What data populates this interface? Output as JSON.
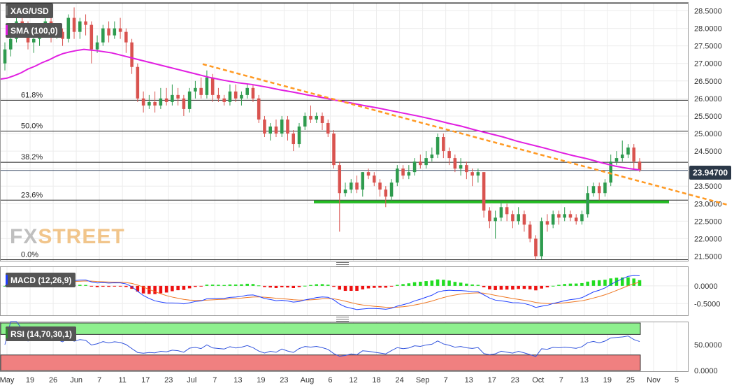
{
  "symbol": "XAG/USD",
  "current_price": "23.94700",
  "watermark": {
    "fx": "FX",
    "rest": "STREET"
  },
  "indicators": {
    "sma": {
      "label": "SMA (100,0)",
      "color": "#e11fe1"
    },
    "macd": {
      "label": "MACD (12,26,9)",
      "color": "#1f3fff"
    },
    "rsi": {
      "label": "RSI (14,70,30,1)",
      "color": "#2e8b2e"
    }
  },
  "colors": {
    "bull": "#2e9b4e",
    "bear": "#d9534f",
    "trendline": "#ff9922",
    "support": "#22bb22",
    "sma": "#e11fe1",
    "macd_line": "#1f3fff",
    "signal_line": "#ee7722",
    "hist_pos": "#22dd22",
    "hist_neg": "#ee1111",
    "rsi_line": "#3355dd",
    "rsi_overbought": "#8ef08e",
    "rsi_oversold": "#f08080"
  },
  "chart_data": [
    {
      "type": "candlestick",
      "title": "XAG/USD",
      "y_ticks": [
        "28.5000",
        "28.0000",
        "27.5000",
        "27.0000",
        "26.5000",
        "26.0000",
        "25.5000",
        "25.0000",
        "24.5000",
        "24.0000",
        "23.5000",
        "23.0000",
        "22.5000",
        "22.0000",
        "21.5000"
      ],
      "ylim": [
        21.35,
        28.75
      ],
      "x_ticks": [
        "May",
        "19",
        "26",
        "Jun",
        "7",
        "11",
        "17",
        "23",
        "Jul",
        "7",
        "13",
        "19",
        "23",
        "Aug",
        "6",
        "12",
        "18",
        "24",
        "Sep",
        "7",
        "13",
        "17",
        "23",
        "Oct",
        "7",
        "13",
        "19",
        "25",
        "Nov",
        "5"
      ],
      "fib_levels": [
        {
          "label": "61.8%",
          "value": 25.95
        },
        {
          "label": "50.0%",
          "value": 25.07
        },
        {
          "label": "38.2%",
          "value": 24.18
        },
        {
          "label": "23.6%",
          "value": 23.1
        },
        {
          "label": "0.0%",
          "value": 21.4
        }
      ],
      "top_line": 28.72,
      "current_price": 23.947,
      "support_line": 23.05,
      "candles": [
        [
          27.0,
          27.4,
          27.6,
          26.8
        ],
        [
          27.4,
          27.7,
          27.9,
          27.2
        ],
        [
          27.7,
          28.2,
          28.4,
          27.6
        ],
        [
          28.2,
          28.0,
          28.5,
          27.8
        ],
        [
          28.0,
          27.6,
          28.2,
          27.4
        ],
        [
          27.6,
          27.7,
          28.0,
          27.3
        ],
        [
          27.7,
          27.9,
          28.1,
          27.5
        ],
        [
          27.9,
          28.2,
          28.4,
          27.8
        ],
        [
          28.2,
          27.8,
          28.4,
          27.6
        ],
        [
          27.8,
          27.9,
          28.1,
          27.7
        ],
        [
          27.9,
          27.7,
          28.0,
          27.5
        ],
        [
          27.7,
          28.3,
          28.4,
          27.6
        ],
        [
          28.3,
          27.9,
          28.6,
          27.7
        ],
        [
          27.9,
          28.2,
          28.3,
          27.7
        ],
        [
          28.2,
          28.1,
          28.4,
          27.8
        ],
        [
          28.1,
          27.4,
          28.2,
          27.0
        ],
        [
          27.4,
          27.6,
          27.8,
          27.3
        ],
        [
          27.6,
          28.0,
          28.1,
          27.5
        ],
        [
          28.0,
          27.8,
          28.2,
          27.6
        ],
        [
          27.8,
          28.0,
          28.2,
          27.7
        ],
        [
          28.0,
          27.9,
          28.3,
          27.7
        ],
        [
          27.9,
          27.6,
          28.0,
          27.3
        ],
        [
          27.6,
          26.9,
          27.7,
          26.7
        ],
        [
          26.9,
          26.0,
          27.0,
          25.9
        ],
        [
          26.0,
          25.8,
          26.2,
          25.6
        ],
        [
          25.8,
          25.9,
          26.1,
          25.7
        ],
        [
          25.9,
          25.8,
          26.2,
          25.6
        ],
        [
          25.8,
          26.0,
          26.3,
          25.7
        ],
        [
          26.0,
          25.9,
          26.3,
          25.8
        ],
        [
          25.9,
          26.1,
          26.4,
          25.8
        ],
        [
          26.1,
          26.0,
          26.3,
          25.8
        ],
        [
          26.0,
          25.7,
          26.1,
          25.5
        ],
        [
          25.7,
          26.2,
          26.3,
          25.6
        ],
        [
          26.2,
          26.3,
          26.5,
          26.0
        ],
        [
          26.3,
          26.1,
          26.6,
          26.0
        ],
        [
          26.1,
          26.6,
          26.8,
          26.0
        ],
        [
          26.6,
          26.1,
          26.7,
          25.9
        ],
        [
          26.1,
          26.0,
          26.3,
          25.9
        ],
        [
          26.0,
          25.9,
          26.1,
          25.8
        ],
        [
          25.9,
          26.2,
          26.4,
          25.8
        ],
        [
          26.2,
          26.0,
          26.4,
          25.9
        ],
        [
          26.0,
          26.1,
          26.2,
          25.8
        ],
        [
          26.1,
          26.3,
          26.4,
          26.0
        ],
        [
          26.3,
          26.0,
          26.4,
          25.9
        ],
        [
          26.0,
          25.4,
          26.1,
          25.3
        ],
        [
          25.4,
          25.0,
          25.5,
          24.9
        ],
        [
          25.0,
          25.2,
          25.3,
          24.8
        ],
        [
          25.2,
          25.0,
          25.4,
          24.9
        ],
        [
          25.0,
          25.4,
          25.5,
          24.9
        ],
        [
          25.4,
          25.0,
          25.5,
          24.8
        ],
        [
          25.0,
          24.7,
          25.1,
          24.5
        ],
        [
          24.7,
          25.2,
          25.3,
          24.6
        ],
        [
          25.2,
          25.5,
          25.6,
          25.1
        ],
        [
          25.5,
          25.4,
          25.8,
          25.3
        ],
        [
          25.4,
          25.5,
          25.6,
          25.3
        ],
        [
          25.5,
          25.3,
          25.6,
          25.1
        ],
        [
          25.3,
          25.0,
          25.4,
          24.9
        ],
        [
          25.0,
          24.1,
          25.1,
          24.0
        ],
        [
          24.1,
          23.3,
          24.2,
          22.2
        ],
        [
          23.3,
          23.4,
          23.6,
          23.2
        ],
        [
          23.4,
          23.6,
          23.7,
          23.3
        ],
        [
          23.6,
          23.4,
          23.8,
          23.3
        ],
        [
          23.4,
          23.9,
          23.9,
          23.2
        ],
        [
          23.9,
          23.8,
          24.0,
          23.7
        ],
        [
          23.8,
          23.6,
          23.9,
          23.5
        ],
        [
          23.6,
          23.4,
          23.7,
          23.2
        ],
        [
          23.4,
          23.2,
          23.5,
          22.9
        ],
        [
          23.2,
          23.6,
          23.7,
          23.1
        ],
        [
          23.6,
          24.0,
          24.1,
          23.5
        ],
        [
          24.0,
          23.8,
          24.1,
          23.7
        ],
        [
          23.8,
          23.9,
          24.1,
          23.7
        ],
        [
          23.9,
          24.2,
          24.3,
          23.8
        ],
        [
          24.2,
          24.1,
          24.4,
          24.0
        ],
        [
          24.1,
          24.3,
          24.5,
          24.0
        ],
        [
          24.3,
          24.4,
          24.6,
          24.2
        ],
        [
          24.4,
          24.9,
          25.0,
          24.3
        ],
        [
          24.9,
          24.5,
          25.0,
          24.3
        ],
        [
          24.5,
          24.3,
          24.6,
          24.1
        ],
        [
          24.3,
          24.0,
          24.4,
          23.9
        ],
        [
          24.0,
          24.1,
          24.3,
          23.8
        ],
        [
          24.1,
          23.9,
          24.2,
          23.7
        ],
        [
          23.9,
          23.8,
          24.0,
          23.5
        ],
        [
          23.8,
          23.9,
          24.0,
          23.6
        ],
        [
          23.9,
          22.8,
          23.9,
          22.6
        ],
        [
          22.8,
          22.5,
          22.9,
          22.3
        ],
        [
          22.5,
          22.6,
          22.8,
          22.0
        ],
        [
          22.6,
          22.9,
          23.1,
          22.5
        ],
        [
          22.9,
          22.7,
          23.0,
          22.5
        ],
        [
          22.7,
          22.5,
          22.8,
          22.3
        ],
        [
          22.5,
          22.7,
          22.9,
          22.4
        ],
        [
          22.7,
          22.4,
          22.8,
          22.2
        ],
        [
          22.4,
          22.0,
          22.5,
          21.9
        ],
        [
          22.0,
          21.5,
          22.1,
          21.4
        ],
        [
          21.5,
          22.5,
          22.6,
          21.4
        ],
        [
          22.5,
          22.4,
          22.7,
          22.2
        ],
        [
          22.4,
          22.7,
          22.8,
          22.3
        ],
        [
          22.7,
          22.6,
          22.8,
          22.4
        ],
        [
          22.6,
          22.7,
          22.9,
          22.5
        ],
        [
          22.7,
          22.6,
          22.8,
          22.5
        ],
        [
          22.6,
          22.5,
          22.7,
          22.4
        ],
        [
          22.5,
          22.7,
          22.8,
          22.4
        ],
        [
          22.7,
          23.3,
          23.5,
          22.6
        ],
        [
          23.3,
          23.5,
          23.6,
          23.2
        ],
        [
          23.5,
          23.3,
          23.6,
          23.1
        ],
        [
          23.3,
          23.6,
          23.7,
          23.2
        ],
        [
          23.6,
          24.2,
          24.4,
          23.5
        ],
        [
          24.2,
          24.3,
          24.5,
          24.1
        ],
        [
          24.3,
          24.4,
          24.8,
          24.2
        ],
        [
          24.4,
          24.6,
          24.7,
          24.3
        ],
        [
          24.6,
          24.2,
          24.7,
          24.0
        ],
        [
          24.2,
          23.95,
          24.3,
          23.9
        ]
      ],
      "sma100": [
        [
          0,
          26.55
        ],
        [
          10,
          26.58
        ],
        [
          20,
          26.65
        ],
        [
          30,
          26.73
        ],
        [
          40,
          26.84
        ],
        [
          50,
          26.92
        ],
        [
          60,
          27.02
        ],
        [
          70,
          27.1
        ],
        [
          80,
          27.2
        ],
        [
          90,
          27.28
        ],
        [
          100,
          27.33
        ],
        [
          110,
          27.37
        ],
        [
          120,
          27.4
        ],
        [
          140,
          27.36
        ],
        [
          160,
          27.3
        ],
        [
          180,
          27.2
        ],
        [
          200,
          27.1
        ],
        [
          220,
          27.0
        ],
        [
          240,
          26.9
        ],
        [
          260,
          26.8
        ],
        [
          280,
          26.7
        ],
        [
          300,
          26.6
        ],
        [
          320,
          26.52
        ],
        [
          340,
          26.45
        ],
        [
          360,
          26.4
        ],
        [
          380,
          26.33
        ],
        [
          400,
          26.25
        ],
        [
          420,
          26.18
        ],
        [
          440,
          26.1
        ],
        [
          460,
          26.03
        ],
        [
          480,
          25.95
        ],
        [
          500,
          25.88
        ],
        [
          520,
          25.8
        ],
        [
          540,
          25.73
        ],
        [
          560,
          25.65
        ],
        [
          580,
          25.57
        ],
        [
          600,
          25.49
        ],
        [
          620,
          25.4
        ],
        [
          640,
          25.3
        ],
        [
          660,
          25.21
        ],
        [
          680,
          25.1
        ],
        [
          700,
          25.0
        ],
        [
          720,
          24.9
        ],
        [
          740,
          24.78
        ],
        [
          760,
          24.68
        ],
        [
          780,
          24.58
        ],
        [
          800,
          24.47
        ],
        [
          820,
          24.37
        ],
        [
          840,
          24.28
        ],
        [
          860,
          24.17
        ],
        [
          880,
          24.07
        ],
        [
          900,
          24.0
        ],
        [
          915,
          23.96
        ]
      ],
      "trendline": [
        [
          290,
          26.98
        ],
        [
          1040,
          22.97
        ]
      ]
    },
    {
      "type": "macd",
      "title": "MACD (12,26,9)",
      "y_ticks": [
        "0.0000",
        "-0.5000"
      ],
      "ylim": [
        -0.85,
        0.55
      ]
    },
    {
      "type": "rsi",
      "title": "RSI (14,70,30,1)",
      "y_ticks": [
        "50.0000",
        "0.0000"
      ],
      "ylim": [
        -3,
        95
      ],
      "overbought": 70,
      "oversold": 30
    }
  ]
}
